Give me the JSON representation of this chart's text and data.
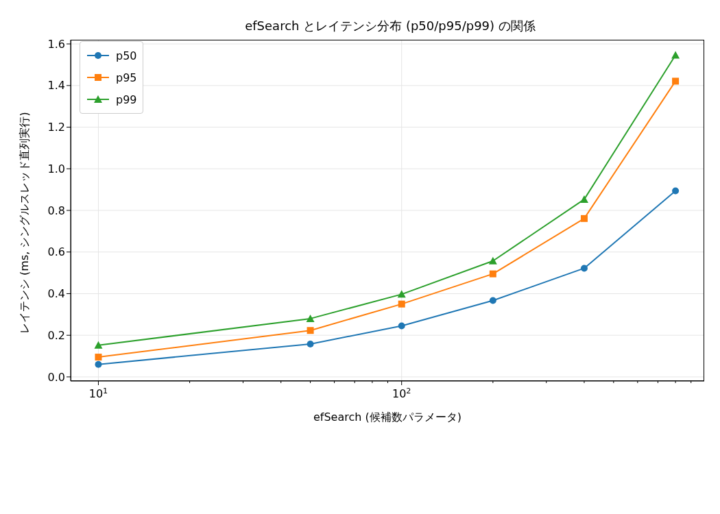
{
  "chart_data": {
    "type": "line",
    "title": "efSearch とレイテンシ分布 (p50/p95/p99) の関係",
    "xlabel": "efSearch (候補数パラメータ)",
    "ylabel": "レイテンシ (ms, シングルスレッド直列実行)",
    "x": [
      10,
      50,
      100,
      200,
      400,
      800
    ],
    "series": [
      {
        "name": "p50",
        "color": "#1f77b4",
        "marker": "circle",
        "values": [
          0.06,
          0.158,
          0.245,
          0.367,
          0.522,
          0.894
        ]
      },
      {
        "name": "p95",
        "color": "#ff7f0e",
        "marker": "square",
        "values": [
          0.095,
          0.223,
          0.35,
          0.495,
          0.761,
          1.421
        ]
      },
      {
        "name": "p99",
        "color": "#2ca02c",
        "marker": "triangle",
        "values": [
          0.152,
          0.28,
          0.397,
          0.557,
          0.853,
          1.546
        ]
      }
    ],
    "log": "x",
    "xlim": [
      8.1,
      995
    ],
    "xticks": [
      {
        "value": 10,
        "label": "10$^{1}$"
      },
      {
        "value": 20,
        "label": null
      },
      {
        "value": 30,
        "label": null
      },
      {
        "value": 40,
        "label": null
      },
      {
        "value": 50,
        "label": null
      },
      {
        "value": 60,
        "label": null
      },
      {
        "value": 70,
        "label": null
      },
      {
        "value": 80,
        "label": null
      },
      {
        "value": 90,
        "label": null
      },
      {
        "value": 100,
        "label": "10$^{2}$"
      },
      {
        "value": 200,
        "label": null
      },
      {
        "value": 300,
        "label": null
      },
      {
        "value": 400,
        "label": null
      },
      {
        "value": 500,
        "label": null
      },
      {
        "value": 600,
        "label": null
      },
      {
        "value": 700,
        "label": null
      },
      {
        "value": 800,
        "label": null
      },
      {
        "value": 900,
        "label": null
      }
    ],
    "ylim": [
      -0.02,
      1.62
    ],
    "yticks": [
      {
        "value": 0,
        "label": "0.0"
      },
      {
        "value": 0.2,
        "label": "0.2"
      },
      {
        "value": 0.4,
        "label": "0.4"
      },
      {
        "value": 0.6,
        "label": "0.6"
      },
      {
        "value": 0.8,
        "label": "0.8"
      },
      {
        "value": 1,
        "label": "1.0"
      },
      {
        "value": 1.2,
        "label": "1.2"
      },
      {
        "value": 1.4,
        "label": "1.4"
      },
      {
        "value": 1.6,
        "label": "1.6"
      }
    ],
    "grid": true,
    "legend": "top left",
    "line_style": "solid"
  }
}
